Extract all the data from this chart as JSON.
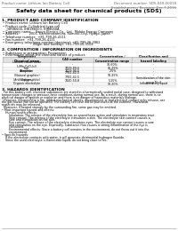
{
  "title": "Safety data sheet for chemical products (SDS)",
  "header_left": "Product name: Lithium Ion Battery Cell",
  "header_right": "Document number: SDS-049-00018\nEstablishment / Revision: Dec.7,2016",
  "section1_title": "1. PRODUCT AND COMPANY IDENTIFICATION",
  "section1_lines": [
    "• Product name: Lithium Ion Battery Cell",
    "• Product code: Cylindrical-type cell",
    "    IHR86500, IHR186500, IHR8650A",
    "• Company name:    Sanyo Electric Co., Ltd.  Mobile Energy Company",
    "• Address:          2001, Kamionakamura, Sumoto-City, Hyogo, Japan",
    "• Telephone number:  +81-799-26-4111",
    "• Fax number:  +81-799-26-4121",
    "• Emergency telephone number (daytime): +81-799-26-3962",
    "                              (Night and holiday): +81-799-26-3104"
  ],
  "section2_title": "2. COMPOSITION / INFORMATION ON INGREDIENTS",
  "section2_intro": "• Substance or preparation: Preparation",
  "section2_sub": "• Information about the chemical nature of product:",
  "table_headers": [
    "Component\nChemical name",
    "CAS number",
    "Concentration /\nConcentration range",
    "Classification and\nhazard labeling"
  ],
  "table_rows": [
    [
      "Lithium cobalt oxide\n(LiMn₂CoO₂(s))",
      "-",
      "30-60%",
      "-"
    ],
    [
      "Iron",
      "7439-89-6",
      "15-25%",
      "-"
    ],
    [
      "Aluminum",
      "7429-90-5",
      "2-5%",
      "-"
    ],
    [
      "Graphite\n(Natural graphite)\n(Artificial graphite)",
      "7782-42-5\n7782-42-5",
      "10-25%",
      "-"
    ],
    [
      "Copper",
      "7440-50-8",
      "5-15%",
      "Sensitization of the skin\ngroup No.2"
    ],
    [
      "Organic electrolyte",
      "-",
      "10-20%",
      "Inflammatory liquid"
    ]
  ],
  "section3_title": "3. HAZARDS IDENTIFICATION",
  "section3_lines": [
    "  For this battery cell, chemical substances are stored in a hermetically sealed metal case, designed to withstand",
    "temperature changes or pressure-force conditions during normal use. As a result, during normal use, there is no",
    "physical danger of ignition or explosion and there is no danger of hazardous materials leakage.",
    "  However, if exposed to a fire, added mechanical shocks, decomposed, or had electrical contact or by misuse, use",
    "the gas nozzle can not be operated. The battery cell case will be punctured at the extreme. Hazardous",
    "materials may be released.",
    "  Moreover, if heated strongly by the surrounding fire, some gas may be emitted.",
    "",
    "• Most important hazard and effects:",
    "    Human health effects:",
    "        Inhalation: The release of the electrolyte has an anaesthesia action and stimulates in respiratory tract.",
    "        Skin contact: The release of the electrolyte stimulates a skin. The electrolyte skin contact causes a",
    "        sore and stimulation on the skin.",
    "        Eye contact: The release of the electrolyte stimulates eyes. The electrolyte eye contact causes a sore",
    "        and stimulation on the eye. Especially, substance that causes a strong inflammation of the eye is",
    "        contained.",
    "        Environmental effects: Since a battery cell remains in the environment, do not throw out it into the",
    "        environment.",
    "",
    "• Specific hazards:",
    "    If the electrolyte contacts with water, it will generate detrimental hydrogen fluoride.",
    "    Since the used electrolyte is flammable liquid, do not bring close to fire."
  ],
  "bg_color": "#ffffff",
  "text_color": "#000000",
  "gray_text": "#666666",
  "table_border_color": "#aaaaaa",
  "table_header_bg": "#e0e0e0"
}
